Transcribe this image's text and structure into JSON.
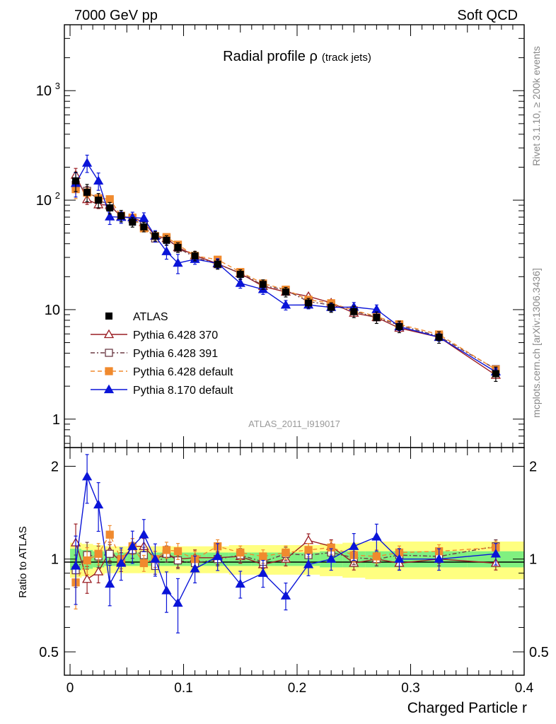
{
  "header": {
    "energy": "7000 GeV pp",
    "process": "Soft QCD"
  },
  "side_labels": {
    "rivet": "Rivet 3.1.10, ≥ 200k events",
    "mcplots": "mcplots.cern.ch [arXiv:1306.3436]"
  },
  "chart_data": {
    "type": "line",
    "title_main": "Radial profile ",
    "title_symbol": "ρ",
    "title_sub": "(track jets)",
    "analysis": "ATLAS_2011_I919017",
    "xlabel": "Charged Particle r",
    "ylabel_ratio": "Ratio to ATLAS",
    "xlim": [
      -0.005,
      0.4
    ],
    "ylim_main": [
      0.55,
      4000
    ],
    "ylim_ratio": [
      0.42,
      2.3
    ],
    "main_yticks": [
      {
        "v": 1,
        "t": "1"
      },
      {
        "v": 10,
        "t": "10"
      },
      {
        "v": 100,
        "t": "10",
        "e": "2"
      },
      {
        "v": 1000,
        "t": "10",
        "e": "3"
      }
    ],
    "ratio_yticks": [
      {
        "v": 0.5,
        "t": "0.5"
      },
      {
        "v": 1,
        "t": "1"
      },
      {
        "v": 2,
        "t": "2"
      }
    ],
    "xticks": [
      {
        "v": 0,
        "t": "0"
      },
      {
        "v": 0.1,
        "t": "0.1"
      },
      {
        "v": 0.2,
        "t": "0.2"
      },
      {
        "v": 0.3,
        "t": "0.3"
      },
      {
        "v": 0.4,
        "t": "0.4"
      }
    ],
    "x": [
      0.005,
      0.015,
      0.025,
      0.035,
      0.045,
      0.055,
      0.065,
      0.075,
      0.085,
      0.095,
      0.11,
      0.13,
      0.15,
      0.17,
      0.19,
      0.21,
      0.23,
      0.25,
      0.27,
      0.29,
      0.325,
      0.375
    ],
    "data": {
      "name": "ATLAS",
      "values": [
        150,
        118,
        100,
        85,
        72,
        63,
        57,
        47,
        43,
        37,
        31,
        26,
        21,
        17,
        14.5,
        11.5,
        10.5,
        9.6,
        8.5,
        7.0,
        5.6,
        2.6
      ],
      "err_rel": [
        0.2,
        0.18,
        0.15,
        0.12,
        0.12,
        0.1,
        0.1,
        0.1,
        0.1,
        0.1,
        0.1,
        0.1,
        0.1,
        0.1,
        0.1,
        0.1,
        0.1,
        0.12,
        0.12,
        0.12,
        0.12,
        0.15
      ],
      "band_inner": [
        0.08,
        0.07,
        0.06,
        0.05,
        0.05,
        0.05,
        0.05,
        0.05,
        0.05,
        0.05,
        0.05,
        0.05,
        0.05,
        0.05,
        0.05,
        0.05,
        0.06,
        0.06,
        0.06,
        0.06,
        0.06,
        0.06
      ],
      "band_outer": [
        0.13,
        0.12,
        0.11,
        0.1,
        0.1,
        0.1,
        0.1,
        0.1,
        0.1,
        0.1,
        0.1,
        0.1,
        0.11,
        0.11,
        0.11,
        0.11,
        0.12,
        0.13,
        0.14,
        0.14,
        0.14,
        0.14
      ]
    },
    "series": [
      {
        "name": "Pythia 6.428 370",
        "color": "#9a1d23",
        "marker": "open-triangle",
        "dash": "",
        "ratio": [
          1.13,
          0.86,
          0.91,
          1.06,
          0.98,
          1.1,
          1.1,
          1.0,
          1.04,
          1.0,
          1.01,
          1.01,
          1.02,
          0.96,
          1.0,
          1.15,
          1.1,
          0.97,
          1.0,
          0.97,
          1.0,
          0.97
        ],
        "err_rel": [
          0.15,
          0.1,
          0.08,
          0.07,
          0.07,
          0.06,
          0.06,
          0.06,
          0.06,
          0.06,
          0.06,
          0.05,
          0.05,
          0.05,
          0.05,
          0.05,
          0.05,
          0.05,
          0.05,
          0.05,
          0.05,
          0.05
        ]
      },
      {
        "name": "Pythia 6.428 391",
        "color": "#6b3a44",
        "marker": "open-square",
        "dash": "6,3,2,3",
        "ratio": [
          0.92,
          1.03,
          1.02,
          1.04,
          1.0,
          1.07,
          1.03,
          0.95,
          1.04,
          0.99,
          0.97,
          1.0,
          1.03,
          0.98,
          1.04,
          1.03,
          1.05,
          1.01,
          1.0,
          1.03,
          1.02,
          1.1
        ],
        "err_rel": [
          0.12,
          0.1,
          0.08,
          0.07,
          0.07,
          0.06,
          0.06,
          0.06,
          0.06,
          0.06,
          0.06,
          0.05,
          0.05,
          0.05,
          0.05,
          0.05,
          0.05,
          0.05,
          0.05,
          0.05,
          0.05,
          0.05
        ]
      },
      {
        "name": "Pythia 6.428 default",
        "color": "#f08a2e",
        "marker": "filled-square",
        "dash": "6,4",
        "ratio": [
          0.84,
          0.99,
          1.04,
          1.2,
          1.0,
          1.1,
          0.97,
          1.0,
          1.07,
          1.06,
          1.0,
          1.1,
          1.05,
          1.02,
          1.05,
          1.07,
          1.09,
          1.03,
          1.02,
          1.05,
          1.06,
          1.09
        ],
        "err_rel": [
          0.18,
          0.1,
          0.08,
          0.07,
          0.07,
          0.06,
          0.06,
          0.06,
          0.06,
          0.06,
          0.06,
          0.05,
          0.05,
          0.05,
          0.05,
          0.05,
          0.05,
          0.05,
          0.05,
          0.05,
          0.05,
          0.05
        ]
      },
      {
        "name": "Pythia 8.170 default",
        "color": "#0a14d8",
        "marker": "filled-triangle",
        "dash": "",
        "ratio": [
          0.95,
          1.85,
          1.5,
          0.83,
          0.97,
          1.1,
          1.2,
          1.0,
          0.79,
          0.72,
          0.93,
          1.02,
          0.83,
          0.9,
          0.76,
          0.96,
          1.0,
          1.1,
          1.18,
          1.0,
          1.0,
          1.04
        ],
        "err_rel": [
          0.25,
          0.18,
          0.18,
          0.15,
          0.12,
          0.12,
          0.12,
          0.12,
          0.15,
          0.2,
          0.1,
          0.1,
          0.1,
          0.1,
          0.1,
          0.08,
          0.08,
          0.1,
          0.1,
          0.08,
          0.08,
          0.08
        ]
      }
    ]
  }
}
